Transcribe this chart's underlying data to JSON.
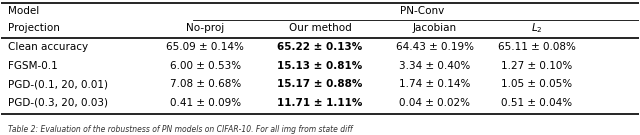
{
  "col_headers_row1": [
    "Model",
    "",
    "PN-Conv",
    "",
    "",
    ""
  ],
  "col_headers_row2": [
    "Projection",
    "No-proj",
    "Our method",
    "Jacobian",
    "L_2"
  ],
  "rows": [
    {
      "label": "Clean accuracy",
      "no_proj": "65.09 ± 0.14%",
      "our_method": "65.22 ± 0.13%",
      "jacobian": "64.43 ± 0.19%",
      "l2": "65.11 ± 0.08%",
      "bold_col": "our_method"
    },
    {
      "label": "FGSM-0.1",
      "no_proj": "6.00 ± 0.53%",
      "our_method": "15.13 ± 0.81%",
      "jacobian": "3.34 ± 0.40%",
      "l2": "1.27 ± 0.10%",
      "bold_col": "our_method"
    },
    {
      "label": "PGD-(0.1, 20, 0.01)",
      "no_proj": "7.08 ± 0.68%",
      "our_method": "15.17 ± 0.88%",
      "jacobian": "1.74 ± 0.14%",
      "l2": "1.05 ± 0.05%",
      "bold_col": "our_method"
    },
    {
      "label": "PGD-(0.3, 20, 0.03)",
      "no_proj": "0.41 ± 0.09%",
      "our_method": "11.71 ± 1.11%",
      "jacobian": "0.04 ± 0.02%",
      "l2": "0.51 ± 0.04%",
      "bold_col": "our_method"
    }
  ],
  "caption": "Table 2: Evaluation of the robustness of PN models on CIFAR-10. For all img from state diff",
  "background_color": "#ffffff",
  "text_color": "#000000",
  "bold_color": "#000000"
}
